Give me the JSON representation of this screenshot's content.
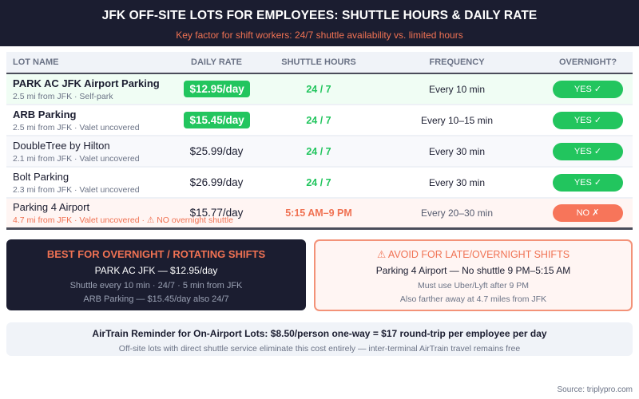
{
  "header": {
    "title": "JFK OFF-SITE LOTS FOR EMPLOYEES: SHUTTLE HOURS & DAILY RATE",
    "subtitle": "Key factor for shift workers: 24/7 shuttle availability vs. limited hours"
  },
  "table": {
    "columns": [
      "LOT NAME",
      "DAILY RATE",
      "SHUTTLE HOURS",
      "FREQUENCY",
      "OVERNIGHT?"
    ],
    "rows": [
      {
        "name": "PARK AC JFK Airport Parking",
        "details": "2.5 mi from JFK · Self-park",
        "rate": "$12.95/day",
        "hours": "24 / 7",
        "frequency": "Every 10 min",
        "overnight": "YES ✓"
      },
      {
        "name": "ARB Parking",
        "details": "2.5 mi from JFK · Valet uncovered",
        "rate": "$15.45/day",
        "hours": "24 / 7",
        "frequency": "Every 10–15 min",
        "overnight": "YES ✓"
      },
      {
        "name": "DoubleTree by Hilton",
        "details": "2.1 mi from JFK · Valet uncovered",
        "rate": "$25.99/day",
        "hours": "24 / 7",
        "frequency": "Every 30 min",
        "overnight": "YES ✓"
      },
      {
        "name": "Bolt Parking",
        "details": "2.3 mi from JFK · Valet uncovered",
        "rate": "$26.99/day",
        "hours": "24 / 7",
        "frequency": "Every 30 min",
        "overnight": "YES ✓"
      },
      {
        "name": "Parking 4 Airport",
        "details": "4.7 mi from JFK · Valet uncovered · ⚠ NO overnight shuttle",
        "rate": "$15.77/day",
        "hours": "5:15 AM–9 PM",
        "frequency": "Every 20–30 min",
        "overnight": "NO ✗"
      }
    ]
  },
  "best": {
    "title": "BEST FOR OVERNIGHT / ROTATING SHIFTS",
    "line1": "PARK AC JFK — $12.95/day",
    "line2": "Shuttle every 10 min · 24/7 · 5 min from JFK",
    "line3": "ARB Parking — $15.45/day also 24/7"
  },
  "avoid": {
    "title": "⚠ AVOID FOR LATE/OVERNIGHT SHIFTS",
    "line1": "Parking 4 Airport — No shuttle 9 PM–5:15 AM",
    "line2": "Must use Uber/Lyft after 9 PM",
    "line3": "Also farther away at 4.7 miles from JFK"
  },
  "airtrain": {
    "title": "AirTrain Reminder for On-Airport Lots: $8.50/person one-way = $17 round-trip per employee per day",
    "note": "Off-site lots with direct shuttle service eliminate this cost entirely — inter-terminal AirTrain travel remains free"
  },
  "source": "Source: triplypro.com",
  "colors": {
    "navy": "#1b1d30",
    "accent_orange": "#f07253",
    "green": "#22c55e",
    "red_pill": "#f7755a"
  }
}
